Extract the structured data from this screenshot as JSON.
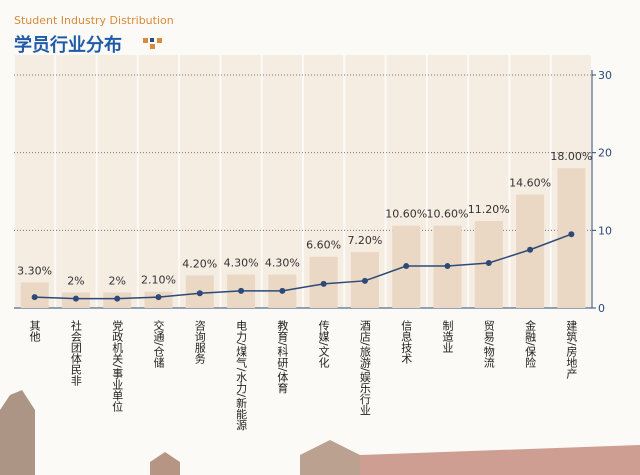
{
  "chart_data": {
    "type": "bar",
    "subtitle": "Student Industry Distribution",
    "title": "学员行业分布",
    "categories": [
      "其他",
      "社会团体民非",
      "党政机关/事业单位",
      "交通/仓储",
      "咨询服务",
      "电力/煤气/水力/新能源",
      "教育/科研/体育",
      "传媒/文化",
      "酒店/旅游/娱乐行业",
      "信息技术",
      "制造业",
      "贸易/物流",
      "金融/保险",
      "建筑/房地产"
    ],
    "series": [
      {
        "type": "bar",
        "color": "#ead8c4",
        "values": [
          3.3,
          2,
          2,
          2.1,
          4.2,
          4.3,
          4.3,
          6.6,
          7.2,
          10.6,
          10.6,
          11.2,
          14.6,
          18.0
        ],
        "value_labels": [
          "3.30%",
          "2%",
          "2%",
          "2.10%",
          "4.20%",
          "4.30%",
          "4.30%",
          "6.60%",
          "7.20%",
          "10.60%",
          "10.60%",
          "11.20%",
          "14.60%",
          "18.00%"
        ]
      },
      {
        "type": "line",
        "color": "#2c4a78",
        "values": [
          1.4,
          1.2,
          1.2,
          1.4,
          1.9,
          2.2,
          2.2,
          3.1,
          3.5,
          5.4,
          5.4,
          5.8,
          7.5,
          9.5
        ]
      }
    ],
    "ylim": [
      0,
      30
    ],
    "yticks": [
      0,
      10,
      20,
      30
    ],
    "grid": true
  }
}
